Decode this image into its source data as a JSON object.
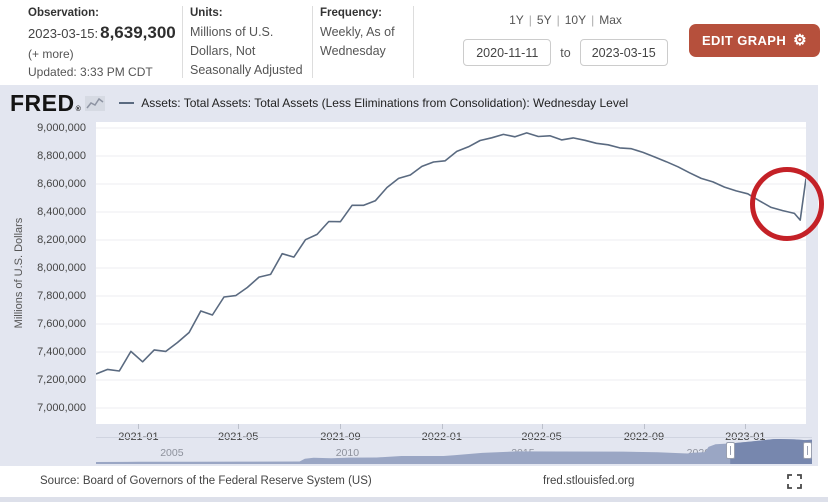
{
  "toolbar": {
    "observation": {
      "label": "Observation:",
      "date": "2023-03-15:",
      "value": "8,639,300",
      "more": "(+ more)",
      "updated": "Updated: 3:33 PM CDT"
    },
    "units": {
      "label": "Units:",
      "value": "Millions of U.S. Dollars, Not Seasonally Adjusted"
    },
    "frequency": {
      "label": "Frequency:",
      "value": "Weekly, As of Wednesday"
    },
    "range_links": [
      "1Y",
      "5Y",
      "10Y",
      "Max"
    ],
    "range_separator": "|",
    "date_range": {
      "start": "2020-11-11",
      "separator": "to",
      "end": "2023-03-15"
    },
    "edit_graph_label": "EDIT GRAPH",
    "edit_graph_color": "#b6503c"
  },
  "header": {
    "logo": "FRED",
    "logo_mark": "®",
    "legend_label": "Assets: Total Assets: Total Assets (Less Eliminations from Consolidation): Wednesday Level"
  },
  "annotation": {
    "type": "circle",
    "color": "#c42127"
  },
  "chart_data": [
    {
      "type": "line",
      "title": "Assets: Total Assets: Total Assets (Less Eliminations from Consolidation): Wednesday Level",
      "ylabel": "Millions of U.S. Dollars",
      "xlabel": "",
      "grid": "horizontal",
      "line_color": "#5a6a80",
      "x_range": [
        "2020-11-11",
        "2023-03-15"
      ],
      "ylim": [
        7000000,
        9000000
      ],
      "yticks": [
        {
          "value": 9000000,
          "label": "9,000,000"
        },
        {
          "value": 8800000,
          "label": "8,800,000"
        },
        {
          "value": 8600000,
          "label": "8,600,000"
        },
        {
          "value": 8400000,
          "label": "8,400,000"
        },
        {
          "value": 8200000,
          "label": "8,200,000"
        },
        {
          "value": 8000000,
          "label": "8,000,000"
        },
        {
          "value": 7800000,
          "label": "7,800,000"
        },
        {
          "value": 7600000,
          "label": "7,600,000"
        },
        {
          "value": 7400000,
          "label": "7,400,000"
        },
        {
          "value": 7200000,
          "label": "7,200,000"
        },
        {
          "value": 7000000,
          "label": "7,000,000"
        }
      ],
      "xticks": [
        {
          "date": "2021-01-01",
          "label": "2021-01"
        },
        {
          "date": "2021-05-01",
          "label": "2021-05"
        },
        {
          "date": "2021-09-01",
          "label": "2021-09"
        },
        {
          "date": "2022-01-01",
          "label": "2022-01"
        },
        {
          "date": "2022-05-01",
          "label": "2022-05"
        },
        {
          "date": "2022-09-01",
          "label": "2022-09"
        },
        {
          "date": "2023-01-01",
          "label": "2023-01"
        }
      ],
      "series": [
        {
          "name": "Assets: Total Assets: Total Assets (Less Eliminations from Consolidation): Wednesday Level",
          "points": [
            [
              "2020-11-11",
              7243000
            ],
            [
              "2020-11-25",
              7276000
            ],
            [
              "2020-12-09",
              7264000
            ],
            [
              "2020-12-23",
              7404000
            ],
            [
              "2021-01-06",
              7330000
            ],
            [
              "2021-01-20",
              7415000
            ],
            [
              "2021-02-03",
              7404000
            ],
            [
              "2021-02-17",
              7468000
            ],
            [
              "2021-03-03",
              7539000
            ],
            [
              "2021-03-17",
              7693000
            ],
            [
              "2021-03-31",
              7664000
            ],
            [
              "2021-04-14",
              7793000
            ],
            [
              "2021-04-28",
              7803000
            ],
            [
              "2021-05-12",
              7861000
            ],
            [
              "2021-05-26",
              7935000
            ],
            [
              "2021-06-09",
              7954000
            ],
            [
              "2021-06-23",
              8102000
            ],
            [
              "2021-07-07",
              8078000
            ],
            [
              "2021-07-21",
              8202000
            ],
            [
              "2021-08-04",
              8240000
            ],
            [
              "2021-08-18",
              8332000
            ],
            [
              "2021-09-01",
              8331000
            ],
            [
              "2021-09-15",
              8448000
            ],
            [
              "2021-09-29",
              8448000
            ],
            [
              "2021-10-13",
              8480000
            ],
            [
              "2021-10-27",
              8575000
            ],
            [
              "2021-11-10",
              8640000
            ],
            [
              "2021-11-24",
              8664000
            ],
            [
              "2021-12-08",
              8726000
            ],
            [
              "2021-12-22",
              8757000
            ],
            [
              "2022-01-05",
              8766000
            ],
            [
              "2022-01-19",
              8833000
            ],
            [
              "2022-02-02",
              8866000
            ],
            [
              "2022-02-16",
              8911000
            ],
            [
              "2022-03-02",
              8930000
            ],
            [
              "2022-03-16",
              8954000
            ],
            [
              "2022-03-30",
              8937000
            ],
            [
              "2022-04-13",
              8965000
            ],
            [
              "2022-04-27",
              8939000
            ],
            [
              "2022-05-11",
              8944000
            ],
            [
              "2022-05-25",
              8915000
            ],
            [
              "2022-06-08",
              8929000
            ],
            [
              "2022-06-22",
              8912000
            ],
            [
              "2022-07-06",
              8891000
            ],
            [
              "2022-07-20",
              8880000
            ],
            [
              "2022-08-03",
              8858000
            ],
            [
              "2022-08-17",
              8852000
            ],
            [
              "2022-08-31",
              8826000
            ],
            [
              "2022-09-14",
              8793000
            ],
            [
              "2022-09-28",
              8759000
            ],
            [
              "2022-10-12",
              8723000
            ],
            [
              "2022-10-26",
              8680000
            ],
            [
              "2022-11-09",
              8640000
            ],
            [
              "2022-11-23",
              8615000
            ],
            [
              "2022-12-07",
              8578000
            ],
            [
              "2022-12-21",
              8551000
            ],
            [
              "2023-01-04",
              8530000
            ],
            [
              "2023-01-18",
              8480000
            ],
            [
              "2023-02-01",
              8433000
            ],
            [
              "2023-02-15",
              8410000
            ],
            [
              "2023-03-01",
              8390000
            ],
            [
              "2023-03-08",
              8342000
            ],
            [
              "2023-03-15",
              8639300
            ]
          ]
        }
      ]
    },
    {
      "type": "area",
      "role": "range-selector",
      "ymax": 9300000,
      "fill_color": "#9aa6c4",
      "selected_fill_color": "#7787ae",
      "labels": [
        2005,
        2010,
        2015,
        2020
      ],
      "selection": {
        "start_year": 2020.87,
        "end_year": 2023.2
      },
      "x_years": [
        2002.8,
        2004,
        2005.5,
        2007,
        2008.6,
        2008.75,
        2009,
        2009.5,
        2010,
        2010.8,
        2011.5,
        2012.7,
        2013,
        2013.8,
        2014.8,
        2016,
        2017.8,
        2018.8,
        2019.65,
        2019.8,
        2020.15,
        2020.25,
        2020.45,
        2020.9,
        2021.5,
        2022.1,
        2022.28,
        2022.7,
        2023.0,
        2023.2
      ],
      "values": [
        730000,
        770000,
        810000,
        870000,
        905000,
        1900000,
        2250000,
        2080000,
        2280000,
        2310000,
        2850000,
        2860000,
        3100000,
        3970000,
        4500000,
        4470000,
        4450000,
        4180000,
        3760000,
        4050000,
        4240000,
        6100000,
        7100000,
        7360000,
        8100000,
        8900000,
        8960000,
        8790000,
        8550000,
        8640000
      ]
    }
  ],
  "footer": {
    "source": "Source: Board of Governors of the Federal Reserve System (US)",
    "site": "fred.stlouisfed.org"
  }
}
